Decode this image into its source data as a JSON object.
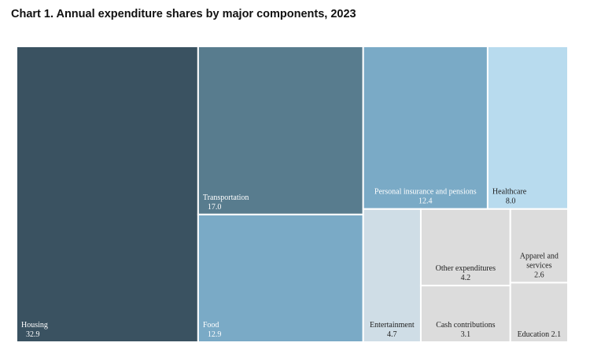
{
  "chart_data": {
    "type": "treemap",
    "title": "Chart 1. Annual expenditure shares by major components, 2023",
    "items": [
      {
        "name": "Housing",
        "value": 32.9,
        "value_label": "32.9",
        "color": "#3a5261",
        "text_color": "#ffffff"
      },
      {
        "name": "Transportation",
        "value": 17.0,
        "value_label": "17.0",
        "color": "#587c8e",
        "text_color": "#ffffff"
      },
      {
        "name": "Food",
        "value": 12.9,
        "value_label": "12.9",
        "color": "#7aaac6",
        "text_color": "#ffffff"
      },
      {
        "name": "Personal insurance and pensions",
        "value": 12.4,
        "value_label": "12.4",
        "color": "#7aaac6",
        "text_color": "#ffffff"
      },
      {
        "name": "Healthcare",
        "value": 8.0,
        "value_label": "8.0",
        "color": "#b8dbee",
        "text_color": "#222222"
      },
      {
        "name": "Entertainment",
        "value": 4.7,
        "value_label": "4.7",
        "color": "#cfdde6",
        "text_color": "#222222"
      },
      {
        "name": "Other expenditures",
        "value": 4.2,
        "value_label": "4.2",
        "color": "#dcdcdc",
        "text_color": "#222222"
      },
      {
        "name": "Cash contributions",
        "value": 3.1,
        "value_label": "3.1",
        "color": "#dcdcdc",
        "text_color": "#222222"
      },
      {
        "name": "Apparel and services",
        "name_lines": [
          "Apparel and",
          "services"
        ],
        "value": 2.6,
        "value_label": "2.6",
        "color": "#dcdcdc",
        "text_color": "#222222"
      },
      {
        "name": "Education",
        "value": 2.1,
        "value_label": "Education 2.1",
        "color": "#dcdcdc",
        "text_color": "#222222"
      }
    ]
  }
}
